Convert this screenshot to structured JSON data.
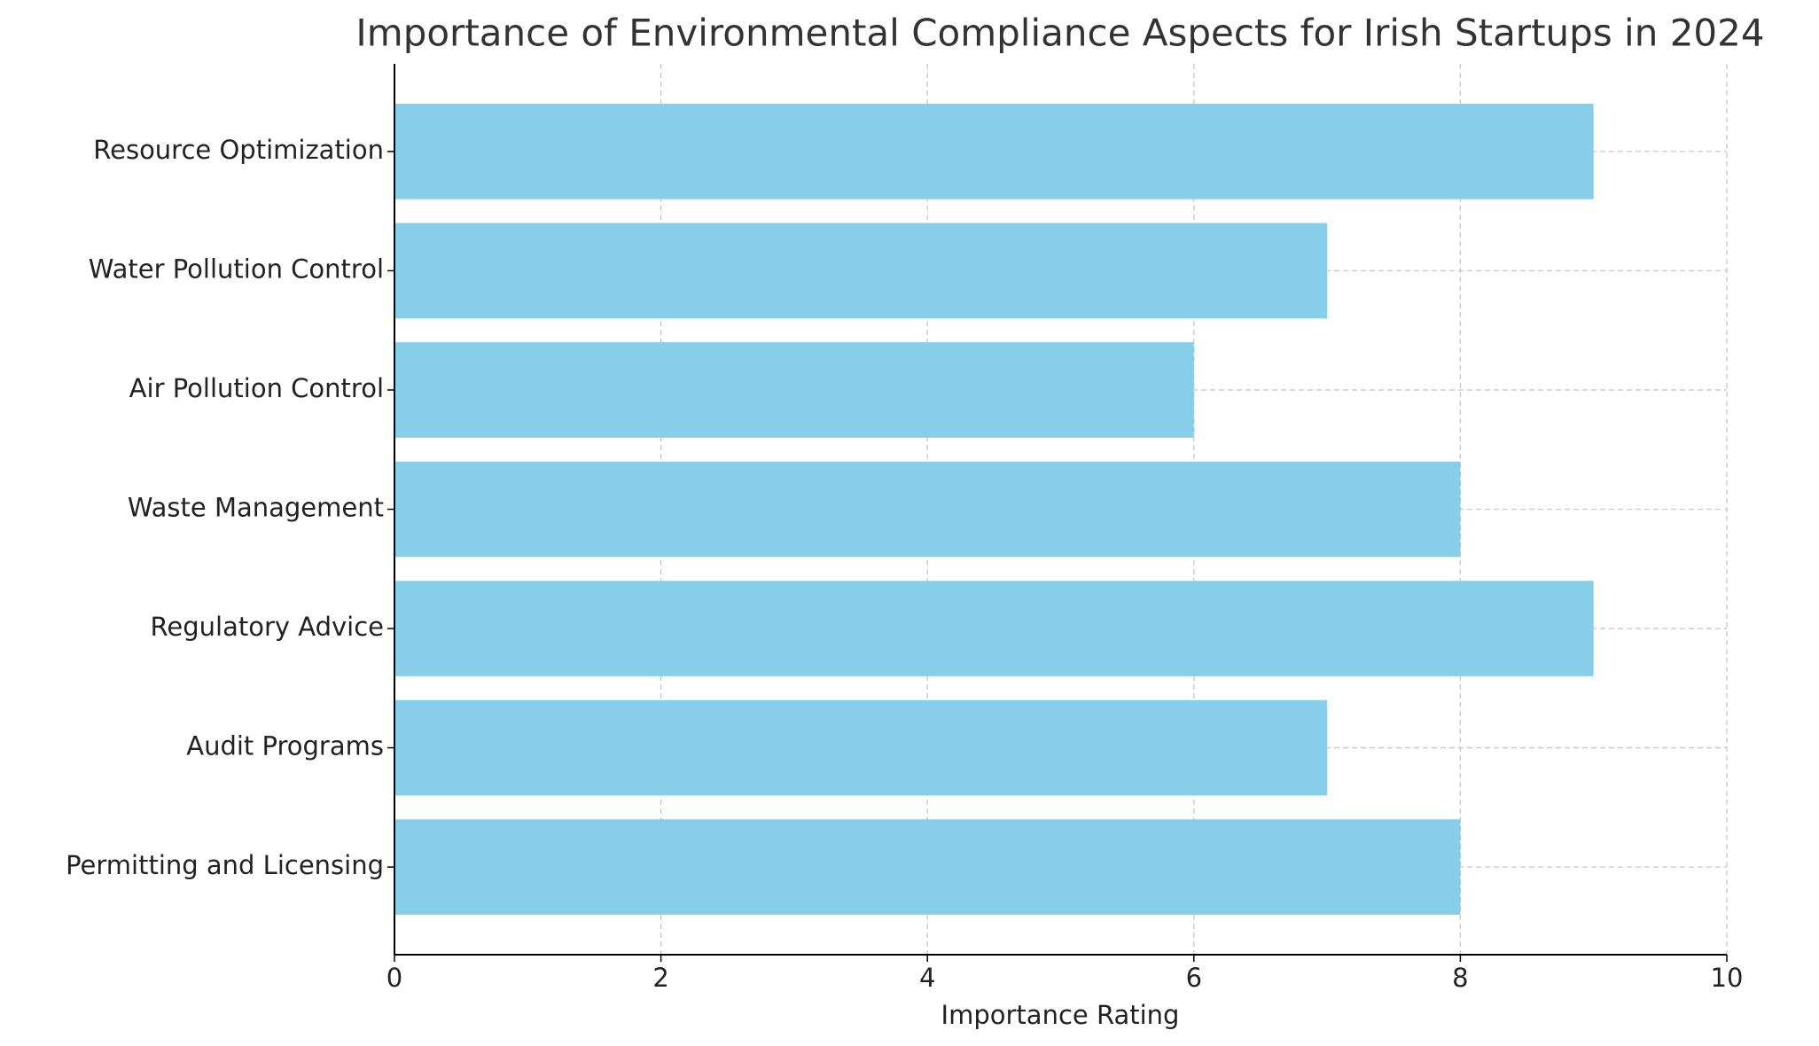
{
  "chart_data": {
    "type": "barh",
    "title": "Importance of Environmental Compliance Aspects for Irish Startups in 2024",
    "x_label": "Importance Rating",
    "categories": [
      "Permitting and Licensing",
      "Audit Programs",
      "Regulatory Advice",
      "Waste Management",
      "Air Pollution Control",
      "Water Pollution Control",
      "Resource Optimization"
    ],
    "values": [
      8,
      7,
      9,
      8,
      6,
      7,
      9
    ],
    "color": "#87ceeb",
    "xlim": [
      0,
      10
    ],
    "xticks": [
      0,
      2,
      4,
      6,
      8,
      10
    ],
    "grid": true
  }
}
